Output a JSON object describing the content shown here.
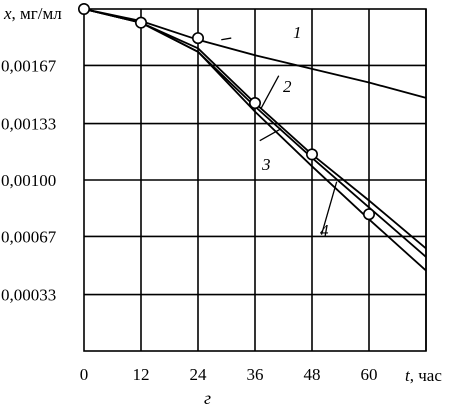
{
  "chart_data": {
    "type": "line",
    "xlabel_var": "t",
    "xlabel_unit": ", час",
    "ylabel_var": "x",
    "ylabel_unit": ", мг/мл",
    "panel_label": "г",
    "xlim": [
      0,
      72
    ],
    "ylim": [
      0,
      0.002
    ],
    "x_ticks": [
      0,
      12,
      24,
      36,
      48,
      60
    ],
    "x_tick_labels": [
      "0",
      "12",
      "24",
      "36",
      "48",
      "60"
    ],
    "y_ticks": [
      0.00033,
      0.00067,
      0.001,
      0.00133,
      0.00167
    ],
    "y_tick_labels": [
      "0,00033",
      "0,00067",
      "0,00100",
      "0,00133",
      "0,00167"
    ],
    "grid": true,
    "series": [
      {
        "name": "1",
        "x": [
          0,
          12,
          24,
          36,
          48,
          60,
          72
        ],
        "y": [
          0.002,
          0.00193,
          0.00182,
          0.00173,
          0.00165,
          0.00157,
          0.00148
        ]
      },
      {
        "name": "2",
        "x": [
          0,
          12,
          24,
          36,
          48,
          60,
          72
        ],
        "y": [
          0.002,
          0.00192,
          0.00177,
          0.00145,
          0.00115,
          0.00088,
          0.0006
        ]
      },
      {
        "name": "3",
        "x": [
          0,
          12,
          24,
          36,
          48,
          60,
          72
        ],
        "y": [
          0.002,
          0.00192,
          0.00175,
          0.00143,
          0.00113,
          0.00084,
          0.00055
        ]
      },
      {
        "name": "4",
        "x": [
          0,
          12,
          24,
          36,
          48,
          60,
          72
        ],
        "y": [
          0.002,
          0.00192,
          0.00175,
          0.0014,
          0.00108,
          0.00077,
          0.00047
        ]
      }
    ],
    "markers": {
      "x": [
        0,
        12,
        24,
        36,
        48,
        60
      ],
      "y": [
        0.002,
        0.00192,
        0.00183,
        0.00145,
        0.00115,
        0.0008
      ]
    },
    "annotations": [
      "1",
      "2",
      "3",
      "4"
    ]
  }
}
